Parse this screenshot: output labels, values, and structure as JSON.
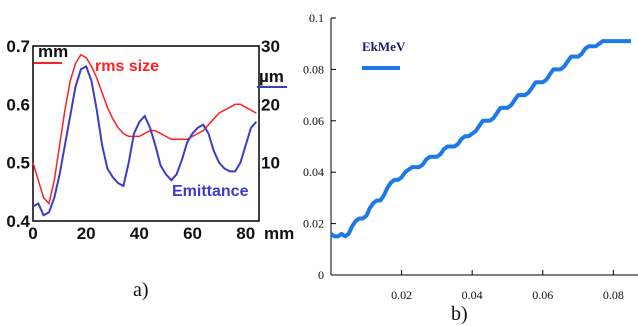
{
  "chart_data": [
    {
      "type": "line",
      "panel_label": "a)",
      "x_unit": "mm",
      "xlim": [
        0,
        85
      ],
      "xticks": [
        "0",
        "20",
        "40",
        "60",
        "80"
      ],
      "y_left_unit": "mm",
      "ylim_left": [
        0.4,
        0.7
      ],
      "yticks_left": [
        "0.4",
        "0.5",
        "0.6",
        "0.7"
      ],
      "y_right_unit": "µm",
      "ylim_right": [
        0,
        30
      ],
      "yticks_right": [
        "10",
        "20",
        "30"
      ],
      "series": [
        {
          "name": "rms size",
          "axis": "left",
          "color": "#ff2020",
          "x": [
            0,
            2,
            4,
            6,
            8,
            10,
            12,
            14,
            16,
            18,
            20,
            22,
            24,
            26,
            28,
            30,
            32,
            34,
            36,
            38,
            40,
            42,
            44,
            46,
            48,
            50,
            52,
            54,
            56,
            58,
            60,
            62,
            64,
            66,
            68,
            70,
            72,
            74,
            76,
            78,
            80,
            82,
            84
          ],
          "y": [
            0.5,
            0.47,
            0.44,
            0.43,
            0.47,
            0.53,
            0.59,
            0.64,
            0.67,
            0.685,
            0.68,
            0.665,
            0.645,
            0.62,
            0.595,
            0.575,
            0.56,
            0.55,
            0.545,
            0.545,
            0.545,
            0.55,
            0.555,
            0.555,
            0.55,
            0.545,
            0.54,
            0.54,
            0.54,
            0.54,
            0.545,
            0.55,
            0.555,
            0.565,
            0.575,
            0.585,
            0.59,
            0.595,
            0.6,
            0.6,
            0.595,
            0.59,
            0.585
          ]
        },
        {
          "name": "Emittance",
          "axis": "right",
          "color": "#3c3cc8",
          "x": [
            0,
            2,
            4,
            6,
            8,
            10,
            12,
            14,
            16,
            18,
            20,
            22,
            24,
            26,
            28,
            30,
            32,
            34,
            36,
            38,
            40,
            42,
            44,
            46,
            48,
            50,
            52,
            54,
            56,
            58,
            60,
            62,
            64,
            66,
            68,
            70,
            72,
            74,
            76,
            78,
            80,
            82,
            84
          ],
          "y": [
            2.5,
            3.0,
            1.0,
            1.5,
            4.0,
            8.0,
            13.0,
            18.0,
            23.0,
            26.0,
            26.5,
            24.0,
            19.0,
            13.0,
            9.0,
            7.5,
            6.5,
            6.0,
            10.0,
            15.0,
            17.0,
            18.0,
            16.0,
            13.0,
            9.5,
            8.0,
            7.0,
            8.0,
            10.5,
            13.5,
            15.0,
            16.0,
            16.5,
            15.0,
            12.0,
            10.0,
            9.0,
            8.5,
            8.5,
            10.0,
            13.0,
            16.0,
            17.0
          ]
        }
      ],
      "annotations": [
        "rms size",
        "Emittance",
        "mm",
        "µm"
      ]
    },
    {
      "type": "line",
      "panel_label": "b)",
      "legend": "EkMeV",
      "legend_position": "top-left",
      "xlim": [
        0,
        0.085
      ],
      "xticks": [
        "0.02",
        "0.04",
        "0.06",
        "0.08"
      ],
      "ylim": [
        0,
        0.1
      ],
      "yticks": [
        "0",
        "0.02",
        "0.04",
        "0.06",
        "0.08",
        "0.1"
      ],
      "grid": false,
      "series": [
        {
          "name": "EkMeV",
          "color": "#1e78e6",
          "x": [
            0,
            0.001,
            0.002,
            0.003,
            0.004,
            0.005,
            0.006,
            0.007,
            0.008,
            0.009,
            0.01,
            0.011,
            0.012,
            0.013,
            0.014,
            0.015,
            0.016,
            0.017,
            0.018,
            0.019,
            0.02,
            0.021,
            0.022,
            0.023,
            0.024,
            0.025,
            0.026,
            0.027,
            0.028,
            0.029,
            0.03,
            0.031,
            0.032,
            0.033,
            0.034,
            0.035,
            0.036,
            0.037,
            0.038,
            0.039,
            0.04,
            0.041,
            0.042,
            0.043,
            0.044,
            0.045,
            0.046,
            0.047,
            0.048,
            0.049,
            0.05,
            0.051,
            0.052,
            0.053,
            0.054,
            0.055,
            0.056,
            0.057,
            0.058,
            0.059,
            0.06,
            0.061,
            0.062,
            0.063,
            0.064,
            0.065,
            0.066,
            0.067,
            0.068,
            0.069,
            0.07,
            0.071,
            0.072,
            0.073,
            0.074,
            0.075,
            0.076,
            0.077,
            0.078,
            0.079,
            0.08,
            0.081,
            0.082,
            0.083,
            0.084,
            0.085
          ],
          "y": [
            0.016,
            0.015,
            0.015,
            0.016,
            0.015,
            0.016,
            0.019,
            0.021,
            0.022,
            0.022,
            0.023,
            0.026,
            0.028,
            0.029,
            0.029,
            0.031,
            0.034,
            0.036,
            0.037,
            0.037,
            0.038,
            0.04,
            0.041,
            0.042,
            0.042,
            0.042,
            0.043,
            0.045,
            0.046,
            0.046,
            0.046,
            0.047,
            0.049,
            0.05,
            0.05,
            0.05,
            0.051,
            0.053,
            0.054,
            0.054,
            0.055,
            0.056,
            0.058,
            0.06,
            0.06,
            0.06,
            0.061,
            0.063,
            0.065,
            0.065,
            0.065,
            0.066,
            0.068,
            0.07,
            0.07,
            0.07,
            0.071,
            0.073,
            0.075,
            0.075,
            0.075,
            0.076,
            0.078,
            0.08,
            0.08,
            0.08,
            0.081,
            0.083,
            0.085,
            0.085,
            0.085,
            0.086,
            0.088,
            0.089,
            0.089,
            0.089,
            0.09,
            0.091,
            0.091,
            0.091,
            0.091,
            0.091,
            0.091,
            0.091,
            0.091,
            0.091
          ]
        }
      ]
    }
  ]
}
